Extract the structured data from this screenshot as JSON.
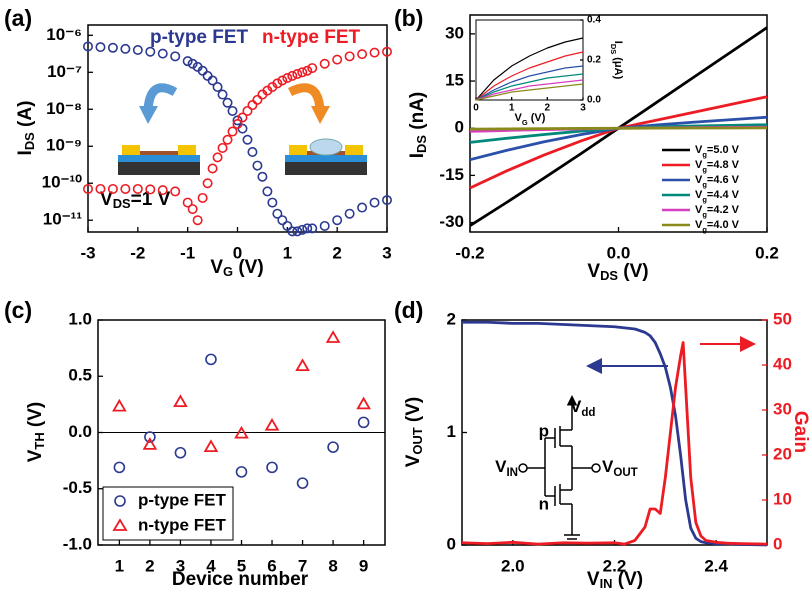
{
  "chart_data": [
    {
      "type": "scatter",
      "label": "(a)",
      "ylog": true,
      "xlabel": "VG (V)",
      "ylabel": "IDS (A)",
      "annotation": "VDS=1 V",
      "xlim": [
        -3,
        3
      ],
      "xticks": [
        -3,
        -2,
        -1,
        0,
        1,
        2,
        3
      ],
      "ylim": [
        4.8e-12,
        1.9e-06
      ],
      "yticks": [
        {
          "value": 1e-06,
          "label": "10⁻⁶"
        },
        {
          "value": 1e-07,
          "label": "10⁻⁷"
        },
        {
          "value": 1e-08,
          "label": "10⁻⁸"
        },
        {
          "value": 1e-09,
          "label": "10⁻⁹"
        },
        {
          "value": 1e-10,
          "label": "10⁻¹⁰"
        },
        {
          "value": 1e-11,
          "label": "10⁻¹¹"
        }
      ],
      "x": [
        -3,
        -2.75,
        -2.5,
        -2.25,
        -2,
        -1.75,
        -1.5,
        -1.25,
        -1,
        -0.9,
        -0.8,
        -0.7,
        -0.6,
        -0.5,
        -0.4,
        -0.3,
        -0.2,
        -0.1,
        0,
        0.1,
        0.2,
        0.3,
        0.4,
        0.5,
        0.6,
        0.7,
        0.8,
        0.9,
        1,
        1.1,
        1.2,
        1.3,
        1.4,
        1.5,
        1.75,
        2,
        2.25,
        2.5,
        2.75,
        3
      ],
      "series": [
        {
          "name": "p-type FET",
          "color": "#2b3990",
          "marker": "circle",
          "values": [
            5e-07,
            4.8e-07,
            4.6e-07,
            4.3e-07,
            4e-07,
            3.6e-07,
            3.2e-07,
            2.7e-07,
            2e-07,
            1.7e-07,
            1.4e-07,
            1.1e-07,
            8e-08,
            6e-08,
            4e-08,
            2.5e-08,
            1.5e-08,
            9e-09,
            5e-09,
            3e-09,
            1.5e-09,
            7e-10,
            3e-10,
            1.5e-10,
            6e-11,
            3e-11,
            1.5e-11,
            1e-11,
            7e-12,
            5e-12,
            5e-12,
            5.5e-12,
            6e-12,
            6e-12,
            7e-12,
            1e-11,
            1.5e-11,
            2.2e-11,
            3e-11,
            3.5e-11
          ]
        },
        {
          "name": "n-type FET",
          "color": "#ed1c24",
          "marker": "circle",
          "values": [
            7e-11,
            7e-11,
            7e-11,
            7e-11,
            7e-11,
            6.8e-11,
            6.5e-11,
            6e-11,
            3e-11,
            2e-11,
            1e-11,
            4e-11,
            1e-10,
            2.5e-10,
            5e-10,
            9e-10,
            1.5e-09,
            2.5e-09,
            4e-09,
            6e-09,
            9e-09,
            1.3e-08,
            1.8e-08,
            2.5e-08,
            3.2e-08,
            4e-08,
            5e-08,
            6e-08,
            7e-08,
            8e-08,
            9e-08,
            1e-07,
            1.1e-07,
            1.3e-07,
            1.7e-07,
            2.2e-07,
            2.7e-07,
            3.1e-07,
            3.4e-07,
            3.6e-07
          ]
        }
      ]
    },
    {
      "type": "line",
      "label": "(b)",
      "xlabel": "VDS (V)",
      "ylabel": "IDS (nA)",
      "xlim": [
        -0.2,
        0.2
      ],
      "xticks": [
        -0.2,
        {
          "value": 0,
          "label": "0.0"
        },
        0.2
      ],
      "ylim": [
        -33,
        36
      ],
      "yticks": [
        -30,
        -15,
        0,
        15,
        30
      ],
      "x": [
        -0.2,
        -0.15,
        -0.1,
        -0.05,
        0,
        0.05,
        0.1,
        0.15,
        0.2
      ],
      "series": [
        {
          "name": "Vg=5.0 V",
          "color": "#000000",
          "values": [
            -31,
            -23.5,
            -15.8,
            -8,
            0,
            8,
            16,
            24,
            32
          ]
        },
        {
          "name": "Vg=4.8 V",
          "color": "#ed1c24",
          "values": [
            -19,
            -13.5,
            -8.5,
            -4,
            0,
            2.5,
            5,
            7.5,
            10
          ]
        },
        {
          "name": "Vg=4.6 V",
          "color": "#2b50aa",
          "values": [
            -10,
            -7,
            -4.3,
            -2,
            0,
            1,
            1.9,
            2.7,
            3.5
          ]
        },
        {
          "name": "Vg=4.4 V",
          "color": "#00897b",
          "values": [
            -4.5,
            -3.2,
            -2,
            -0.9,
            0,
            0.4,
            0.7,
            0.9,
            1.1
          ]
        },
        {
          "name": "Vg=4.2 V",
          "color": "#d63fbf",
          "values": [
            -1,
            -0.7,
            -0.45,
            -0.2,
            0,
            0.1,
            0.2,
            0.25,
            0.3
          ]
        },
        {
          "name": "Vg=4.0 V",
          "color": "#8a8a1c",
          "values": [
            -0.3,
            -0.2,
            -0.12,
            -0.05,
            0,
            0.03,
            0.06,
            0.08,
            0.1
          ]
        }
      ]
    },
    {
      "type": "line",
      "xlabel": "VG (V)",
      "ylabel": "IDS (μA)",
      "xlim": [
        0,
        3
      ],
      "xticks": [
        0,
        1,
        2,
        3
      ],
      "ylim": [
        0,
        0.4
      ],
      "yticks": [
        {
          "value": 0,
          "label": "0.0"
        },
        0.2,
        0.4
      ],
      "x": [
        0,
        0.5,
        1,
        1.5,
        2,
        2.5,
        3
      ],
      "series": [
        {
          "color": "#000000",
          "values": [
            0,
            0.1,
            0.17,
            0.22,
            0.26,
            0.29,
            0.31
          ]
        },
        {
          "color": "#ed1c24",
          "values": [
            0,
            0.07,
            0.12,
            0.16,
            0.19,
            0.22,
            0.24
          ]
        },
        {
          "color": "#2b50aa",
          "values": [
            0,
            0.05,
            0.09,
            0.12,
            0.14,
            0.16,
            0.17
          ]
        },
        {
          "color": "#00897b",
          "values": [
            0,
            0.04,
            0.07,
            0.09,
            0.11,
            0.12,
            0.13
          ]
        },
        {
          "color": "#d63fbf",
          "values": [
            0,
            0.03,
            0.05,
            0.07,
            0.08,
            0.09,
            0.1
          ]
        },
        {
          "color": "#8a8a1c",
          "values": [
            0,
            0.02,
            0.04,
            0.05,
            0.06,
            0.07,
            0.08
          ]
        }
      ]
    },
    {
      "type": "scatter",
      "label": "(c)",
      "xlabel": "Device number",
      "ylabel": "VTH (V)",
      "hline": 0,
      "xlim": [
        0.3,
        9.7
      ],
      "xticks": [
        1,
        2,
        3,
        4,
        5,
        6,
        7,
        8,
        9
      ],
      "ylim": [
        -1,
        1
      ],
      "yticks": [
        {
          "value": -1,
          "label": "-1.0"
        },
        -0.5,
        {
          "value": 0,
          "label": "0.0"
        },
        0.5,
        {
          "value": 1,
          "label": "1.0"
        }
      ],
      "x": [
        1,
        2,
        3,
        4,
        5,
        6,
        7,
        8,
        9
      ],
      "series": [
        {
          "name": "p-type FET",
          "color": "#2b3990",
          "marker": "circle",
          "values": [
            -0.31,
            -0.04,
            -0.18,
            0.65,
            -0.35,
            -0.31,
            -0.45,
            -0.13,
            0.09
          ]
        },
        {
          "name": "n-type FET",
          "color": "#ed1c24",
          "marker": "triangle",
          "values": [
            0.23,
            -0.11,
            0.27,
            -0.13,
            -0.01,
            0.06,
            0.59,
            0.84,
            0.25
          ]
        }
      ]
    },
    {
      "type": "line",
      "label": "(d)",
      "xlabel": "VIN (V)",
      "ylabel": "VOUT (V)",
      "y2label": "Gain",
      "circuit": {
        "vdd": "Vdd",
        "p": "p",
        "n": "n",
        "vin": "VIN",
        "vout": "VOUT"
      },
      "xlim": [
        1.9,
        2.5
      ],
      "xticks": [
        {
          "value": 2,
          "label": "2.0"
        },
        2.2,
        2.4
      ],
      "ylim": [
        0,
        2
      ],
      "yticks": [
        0,
        1,
        2
      ],
      "y2lim": [
        0,
        50
      ],
      "y2ticks": [
        0,
        10,
        20,
        30,
        40,
        50
      ],
      "x": [
        1.9,
        1.95,
        2.0,
        2.05,
        2.1,
        2.15,
        2.2,
        2.22,
        2.24,
        2.26,
        2.27,
        2.28,
        2.29,
        2.3,
        2.31,
        2.32,
        2.33,
        2.335,
        2.34,
        2.35,
        2.36,
        2.37,
        2.38,
        2.4,
        2.42,
        2.45,
        2.5
      ],
      "series": [
        {
          "color": "#2b3990",
          "values": [
            1.98,
            1.98,
            1.97,
            1.97,
            1.96,
            1.95,
            1.94,
            1.93,
            1.92,
            1.89,
            1.86,
            1.8,
            1.7,
            1.58,
            1.4,
            1.15,
            0.8,
            0.6,
            0.4,
            0.15,
            0.06,
            0.03,
            0.02,
            0.01,
            0.01,
            0.005,
            0
          ]
        },
        {
          "color": "#ed1c24",
          "axis": "y2",
          "values": [
            0.5,
            0.3,
            0.6,
            0.2,
            0.5,
            0.4,
            0.5,
            0.2,
            1,
            4,
            8,
            8,
            7,
            15,
            25,
            35,
            42,
            45,
            35,
            15,
            5,
            2,
            1,
            0.6,
            0.4,
            0.3,
            0.2
          ]
        }
      ]
    }
  ]
}
